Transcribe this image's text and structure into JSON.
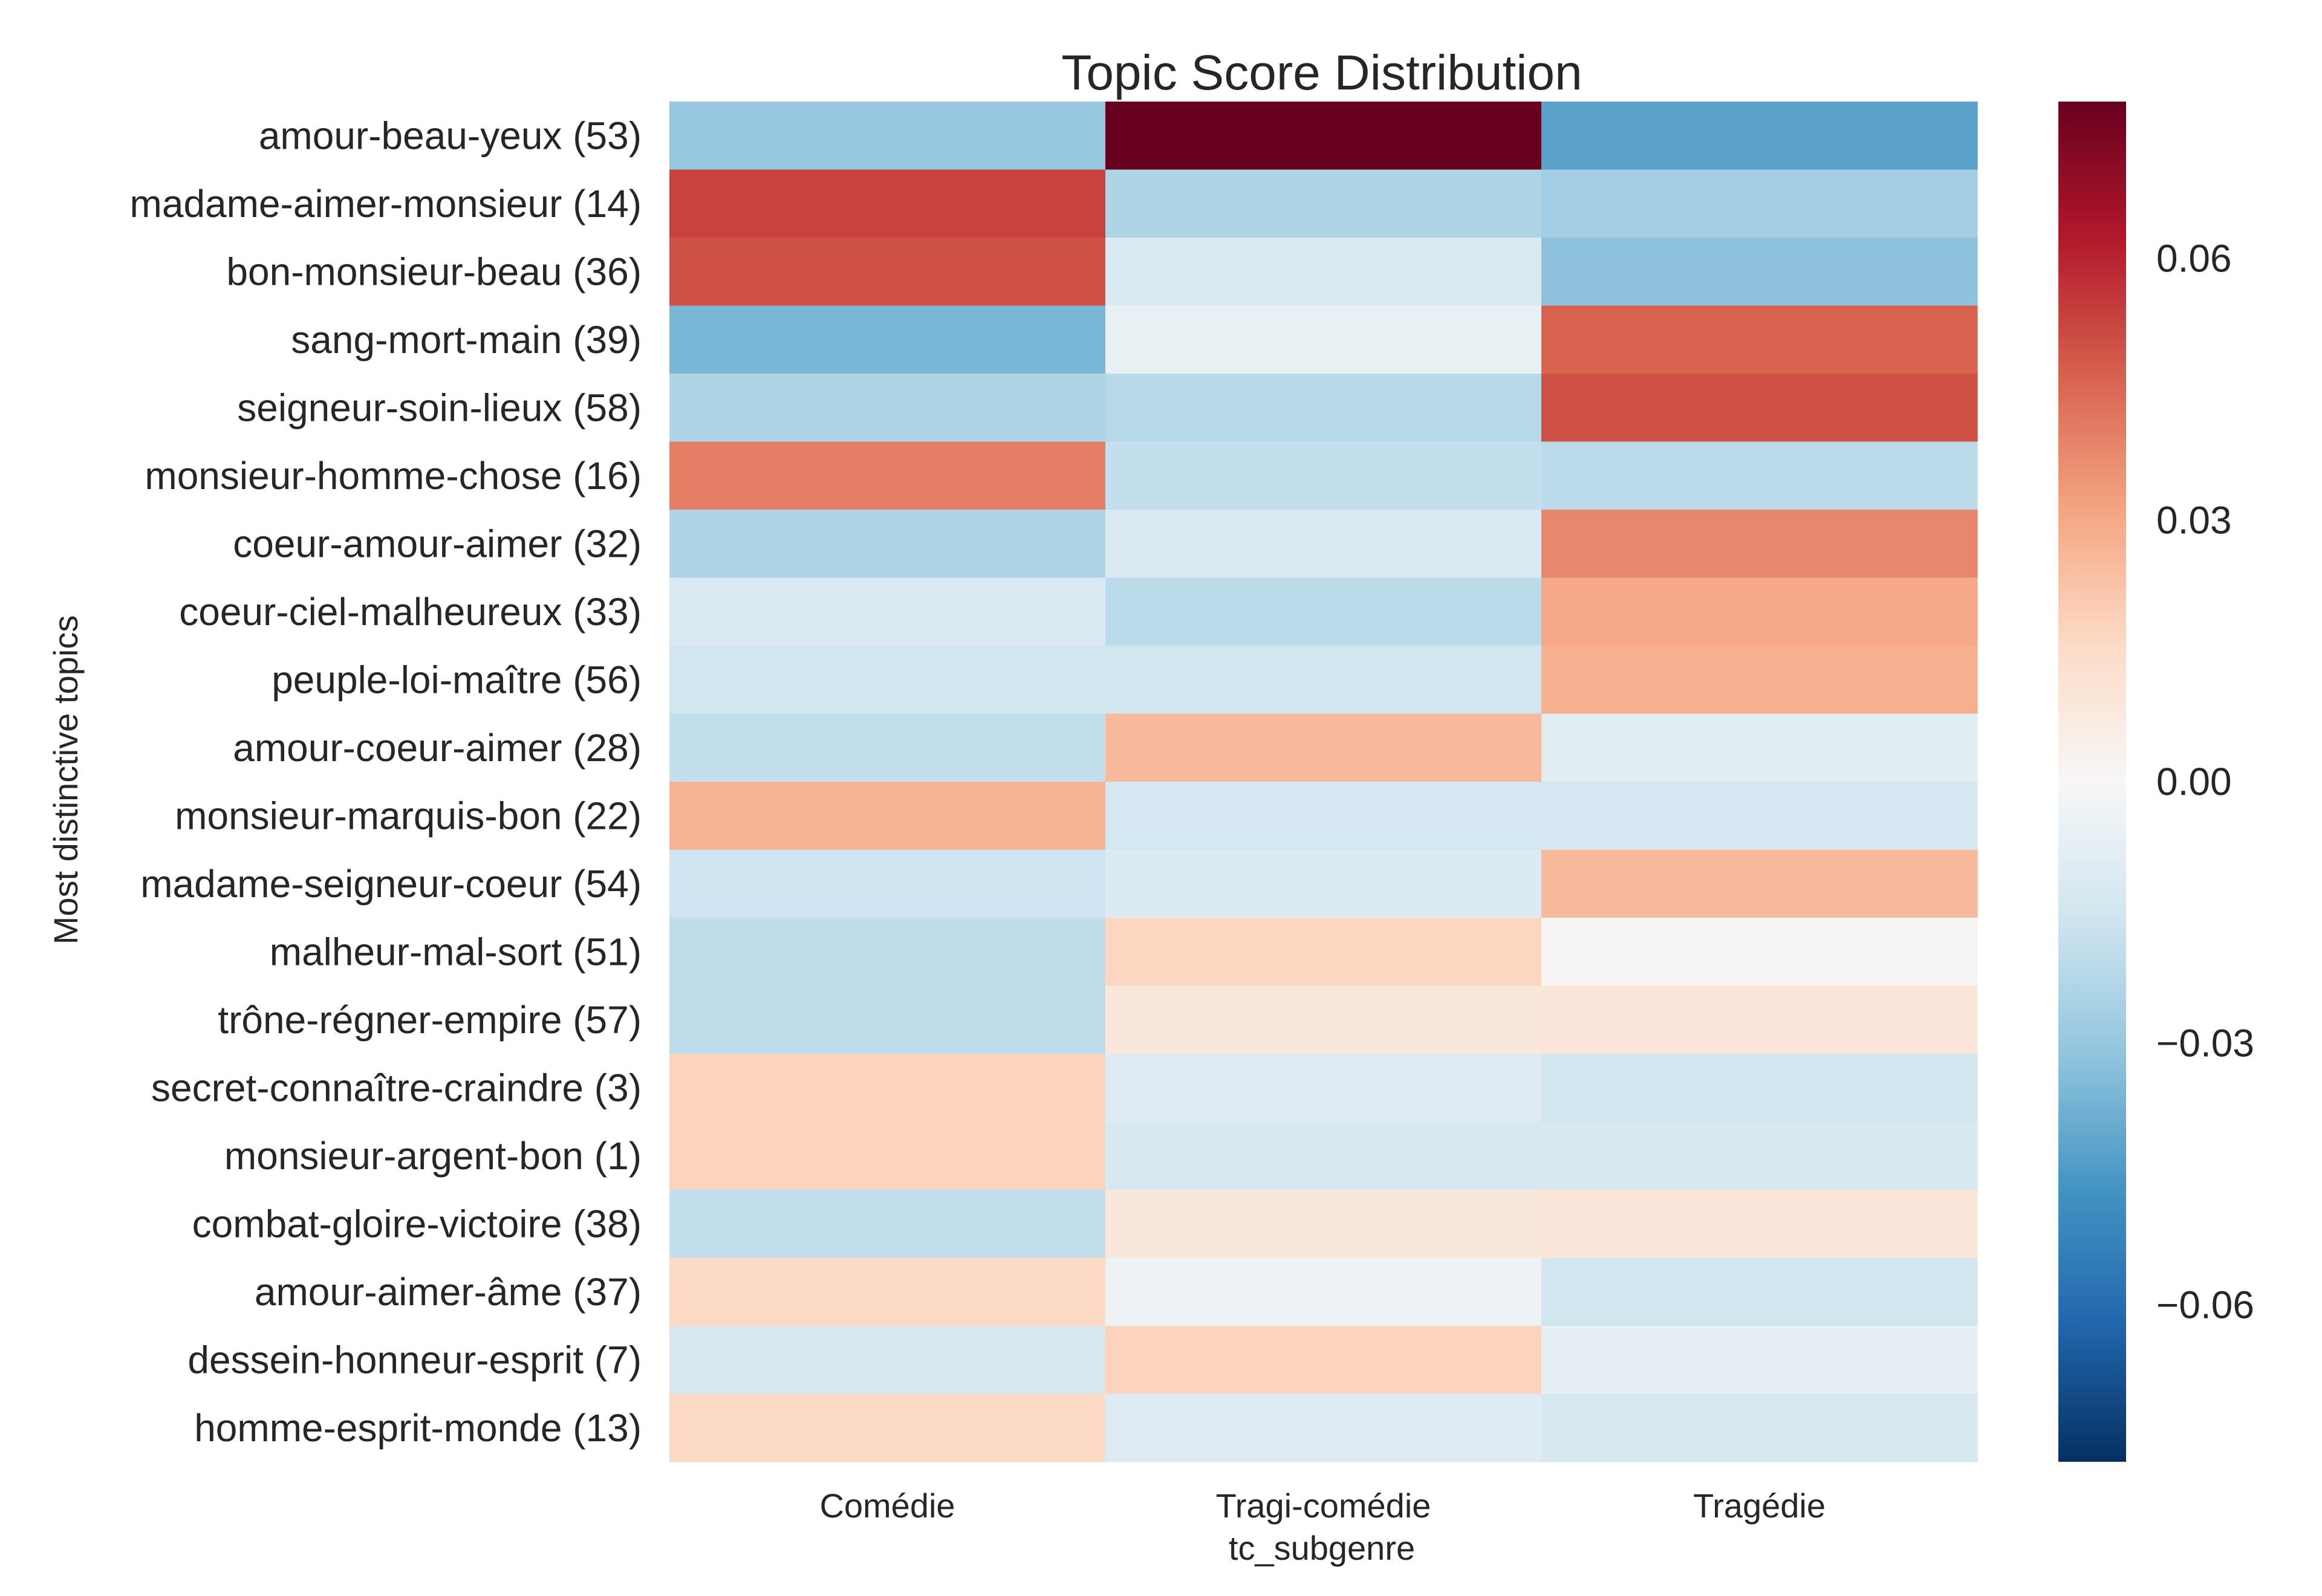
{
  "chart_data": {
    "type": "heatmap",
    "title": "Topic Score Distribution",
    "xlabel": "tc_subgenre",
    "ylabel": "Most distinctive topics",
    "x": [
      "Comédie",
      "Tragi-comédie",
      "Tragédie"
    ],
    "y": [
      "amour-beau-yeux (53)",
      "madame-aimer-monsieur (14)",
      "bon-monsieur-beau (36)",
      "sang-mort-main (39)",
      "seigneur-soin-lieux (58)",
      "monsieur-homme-chose (16)",
      "coeur-amour-aimer (32)",
      "coeur-ciel-malheureux (33)",
      "peuple-loi-maître (56)",
      "amour-coeur-aimer (28)",
      "monsieur-marquis-bon (22)",
      "madame-seigneur-coeur (54)",
      "malheur-mal-sort (51)",
      "trône-régner-empire (57)",
      "secret-connaître-craindre (3)",
      "monsieur-argent-bon (1)",
      "combat-gloire-victoire (38)",
      "amour-aimer-âme (37)",
      "dessein-honneur-esprit (7)",
      "homme-esprit-monde (13)"
    ],
    "values": [
      [
        -0.03,
        0.078,
        -0.042
      ],
      [
        0.053,
        -0.024,
        -0.027
      ],
      [
        0.05,
        -0.012,
        -0.032
      ],
      [
        -0.036,
        -0.006,
        0.046
      ],
      [
        -0.024,
        -0.022,
        0.05
      ],
      [
        0.04,
        -0.019,
        -0.021
      ],
      [
        -0.024,
        -0.012,
        0.038
      ],
      [
        -0.012,
        -0.021,
        0.03
      ],
      [
        -0.015,
        -0.015,
        0.028
      ],
      [
        -0.019,
        0.025,
        -0.009
      ],
      [
        0.027,
        -0.014,
        -0.014
      ],
      [
        -0.016,
        -0.011,
        0.025
      ],
      [
        -0.02,
        0.017,
        0.001
      ],
      [
        -0.02,
        0.009,
        0.01
      ],
      [
        0.018,
        -0.01,
        -0.015
      ],
      [
        0.018,
        -0.013,
        -0.013
      ],
      [
        -0.019,
        0.009,
        0.01
      ],
      [
        0.016,
        -0.004,
        -0.015
      ],
      [
        -0.013,
        0.018,
        -0.007
      ],
      [
        0.016,
        -0.01,
        -0.013
      ]
    ],
    "colorbar": {
      "colormap": "RdBu_r",
      "vmin": -0.078,
      "vmax": 0.078,
      "ticks": [
        0.06,
        0.03,
        0.0,
        -0.03,
        -0.06
      ],
      "tick_labels": [
        "0.06",
        "0.03",
        "0.00",
        "−0.03",
        "−0.06"
      ]
    },
    "grid": false,
    "legend": "colorbar-right"
  }
}
